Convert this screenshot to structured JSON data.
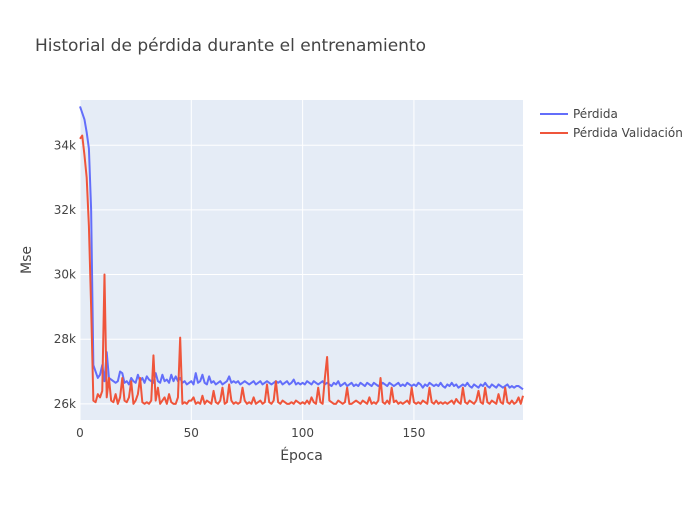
{
  "chart_data": {
    "type": "line",
    "title": "Historial de pérdida durante el entrenamiento",
    "xlabel": "Época",
    "ylabel": "Mse",
    "xlim": [
      0,
      199
    ],
    "ylim": [
      25500,
      35400
    ],
    "x_ticks": [
      0,
      50,
      100,
      150
    ],
    "x_tick_labels": [
      "0",
      "50",
      "100",
      "150"
    ],
    "y_ticks": [
      26000,
      28000,
      30000,
      32000,
      34000
    ],
    "y_tick_labels": [
      "26k",
      "28k",
      "30k",
      "32k",
      "34k"
    ],
    "grid": true,
    "legend_position": "top-right",
    "series": [
      {
        "name": "Pérdida",
        "color": "#636efa",
        "x": [
          0,
          1,
          2,
          3,
          4,
          5,
          6,
          7,
          8,
          9,
          10,
          11,
          12,
          13,
          14,
          15,
          16,
          17,
          18,
          19,
          20,
          21,
          22,
          23,
          24,
          25,
          26,
          27,
          28,
          29,
          30,
          31,
          32,
          33,
          34,
          35,
          36,
          37,
          38,
          39,
          40,
          41,
          42,
          43,
          44,
          45,
          46,
          47,
          48,
          49,
          50,
          51,
          52,
          53,
          54,
          55,
          56,
          57,
          58,
          59,
          60,
          61,
          62,
          63,
          64,
          65,
          66,
          67,
          68,
          69,
          70,
          71,
          72,
          73,
          74,
          75,
          76,
          77,
          78,
          79,
          80,
          81,
          82,
          83,
          84,
          85,
          86,
          87,
          88,
          89,
          90,
          91,
          92,
          93,
          94,
          95,
          96,
          97,
          98,
          99,
          100,
          101,
          102,
          103,
          104,
          105,
          106,
          107,
          108,
          109,
          110,
          111,
          112,
          113,
          114,
          115,
          116,
          117,
          118,
          119,
          120,
          121,
          122,
          123,
          124,
          125,
          126,
          127,
          128,
          129,
          130,
          131,
          132,
          133,
          134,
          135,
          136,
          137,
          138,
          139,
          140,
          141,
          142,
          143,
          144,
          145,
          146,
          147,
          148,
          149,
          150,
          151,
          152,
          153,
          154,
          155,
          156,
          157,
          158,
          159,
          160,
          161,
          162,
          163,
          164,
          165,
          166,
          167,
          168,
          169,
          170,
          171,
          172,
          173,
          174,
          175,
          176,
          177,
          178,
          179,
          180,
          181,
          182,
          183,
          184,
          185,
          186,
          187,
          188,
          189,
          190,
          191,
          192,
          193,
          194,
          195,
          196,
          197,
          198,
          199
        ],
        "y": [
          35200,
          35000,
          34800,
          34400,
          33900,
          32000,
          27200,
          27000,
          26800,
          26900,
          27200,
          26700,
          27600,
          26800,
          26750,
          26700,
          26650,
          26700,
          27000,
          26950,
          26650,
          26700,
          26600,
          26800,
          26700,
          26650,
          26900,
          26700,
          26800,
          26650,
          26850,
          26750,
          26700,
          26650,
          26950,
          26700,
          26650,
          26900,
          26700,
          26750,
          26650,
          26900,
          26700,
          26850,
          26700,
          26800,
          26650,
          26700,
          26600,
          26650,
          26700,
          26600,
          26950,
          26650,
          26700,
          26900,
          26650,
          26600,
          26850,
          26650,
          26700,
          26600,
          26650,
          26700,
          26600,
          26650,
          26700,
          26850,
          26650,
          26700,
          26650,
          26700,
          26600,
          26650,
          26700,
          26650,
          26600,
          26650,
          26700,
          26600,
          26650,
          26700,
          26600,
          26650,
          26700,
          26650,
          26600,
          26650,
          26700,
          26650,
          26700,
          26600,
          26650,
          26700,
          26600,
          26650,
          26750,
          26600,
          26650,
          26600,
          26650,
          26600,
          26700,
          26650,
          26600,
          26700,
          26650,
          26600,
          26650,
          26700,
          26600,
          26650,
          26600,
          26550,
          26650,
          26600,
          26700,
          26550,
          26600,
          26650,
          26550,
          26600,
          26650,
          26550,
          26600,
          26550,
          26650,
          26600,
          26550,
          26650,
          26600,
          26550,
          26650,
          26600,
          26550,
          26600,
          26650,
          26600,
          26550,
          26650,
          26600,
          26550,
          26600,
          26650,
          26550,
          26600,
          26550,
          26650,
          26600,
          26550,
          26600,
          26550,
          26650,
          26600,
          26500,
          26600,
          26550,
          26650,
          26600,
          26550,
          26600,
          26550,
          26650,
          26550,
          26500,
          26600,
          26550,
          26650,
          26550,
          26600,
          26500,
          26550,
          26600,
          26550,
          26650,
          26550,
          26500,
          26600,
          26550,
          26500,
          26600,
          26550,
          26650,
          26550,
          26500,
          26600,
          26550,
          26500,
          26600,
          26550,
          26500,
          26550,
          26600,
          26500,
          26550,
          26500,
          26550,
          26550,
          26500,
          26450
        ]
      },
      {
        "name": "Pérdida Validación",
        "color": "#ef553b",
        "x": [
          0,
          1,
          2,
          3,
          4,
          5,
          6,
          7,
          8,
          9,
          10,
          11,
          12,
          13,
          14,
          15,
          16,
          17,
          18,
          19,
          20,
          21,
          22,
          23,
          24,
          25,
          26,
          27,
          28,
          29,
          30,
          31,
          32,
          33,
          34,
          35,
          36,
          37,
          38,
          39,
          40,
          41,
          42,
          43,
          44,
          45,
          46,
          47,
          48,
          49,
          50,
          51,
          52,
          53,
          54,
          55,
          56,
          57,
          58,
          59,
          60,
          61,
          62,
          63,
          64,
          65,
          66,
          67,
          68,
          69,
          70,
          71,
          72,
          73,
          74,
          75,
          76,
          77,
          78,
          79,
          80,
          81,
          82,
          83,
          84,
          85,
          86,
          87,
          88,
          89,
          90,
          91,
          92,
          93,
          94,
          95,
          96,
          97,
          98,
          99,
          100,
          101,
          102,
          103,
          104,
          105,
          106,
          107,
          108,
          109,
          110,
          111,
          112,
          113,
          114,
          115,
          116,
          117,
          118,
          119,
          120,
          121,
          122,
          123,
          124,
          125,
          126,
          127,
          128,
          129,
          130,
          131,
          132,
          133,
          134,
          135,
          136,
          137,
          138,
          139,
          140,
          141,
          142,
          143,
          144,
          145,
          146,
          147,
          148,
          149,
          150,
          151,
          152,
          153,
          154,
          155,
          156,
          157,
          158,
          159,
          160,
          161,
          162,
          163,
          164,
          165,
          166,
          167,
          168,
          169,
          170,
          171,
          172,
          173,
          174,
          175,
          176,
          177,
          178,
          179,
          180,
          181,
          182,
          183,
          184,
          185,
          186,
          187,
          188,
          189,
          190,
          191,
          192,
          193,
          194,
          195,
          196,
          197,
          198,
          199
        ],
        "y": [
          34200,
          34300,
          33700,
          33000,
          31500,
          29000,
          26100,
          26050,
          26300,
          26200,
          26400,
          30000,
          26200,
          26800,
          26100,
          26050,
          26300,
          26000,
          26200,
          26800,
          26100,
          26050,
          26200,
          26700,
          26000,
          26100,
          26300,
          26800,
          26050,
          26000,
          26050,
          26000,
          26100,
          27500,
          26100,
          26500,
          26000,
          26100,
          26200,
          26000,
          26300,
          26050,
          26000,
          26000,
          26200,
          28050,
          26000,
          26050,
          26000,
          26100,
          26100,
          26200,
          26000,
          26050,
          26000,
          26250,
          26000,
          26100,
          26050,
          26000,
          26400,
          26050,
          26000,
          26100,
          26500,
          26000,
          26050,
          26600,
          26100,
          26000,
          26050,
          26000,
          26050,
          26500,
          26100,
          26000,
          26050,
          26000,
          26200,
          26000,
          26050,
          26100,
          26000,
          26050,
          26600,
          26050,
          26000,
          26100,
          26700,
          26050,
          26000,
          26100,
          26050,
          26000,
          26000,
          26050,
          26000,
          26100,
          26050,
          26000,
          26050,
          26000,
          26100,
          26000,
          26200,
          26050,
          26000,
          26500,
          26050,
          26000,
          26800,
          27450,
          26100,
          26050,
          26000,
          26000,
          26100,
          26050,
          26000,
          26050,
          26500,
          26000,
          26000,
          26050,
          26100,
          26050,
          26000,
          26100,
          26050,
          26000,
          26200,
          26000,
          26050,
          26000,
          26100,
          26800,
          26050,
          26000,
          26100,
          26000,
          26500,
          26050,
          26100,
          26000,
          26050,
          26000,
          26050,
          26100,
          26000,
          26500,
          26050,
          26000,
          26050,
          26000,
          26100,
          26050,
          26000,
          26500,
          26050,
          26000,
          26100,
          26000,
          26050,
          26000,
          26050,
          26000,
          26050,
          26100,
          26000,
          26150,
          26050,
          26000,
          26500,
          26050,
          26000,
          26100,
          26050,
          26000,
          26100,
          26400,
          26050,
          26000,
          26500,
          26050,
          26000,
          26100,
          26050,
          26000,
          26300,
          26050,
          26000,
          26500,
          26050,
          26000,
          26100,
          26000,
          26050,
          26200,
          26000,
          26250
        ]
      }
    ]
  }
}
